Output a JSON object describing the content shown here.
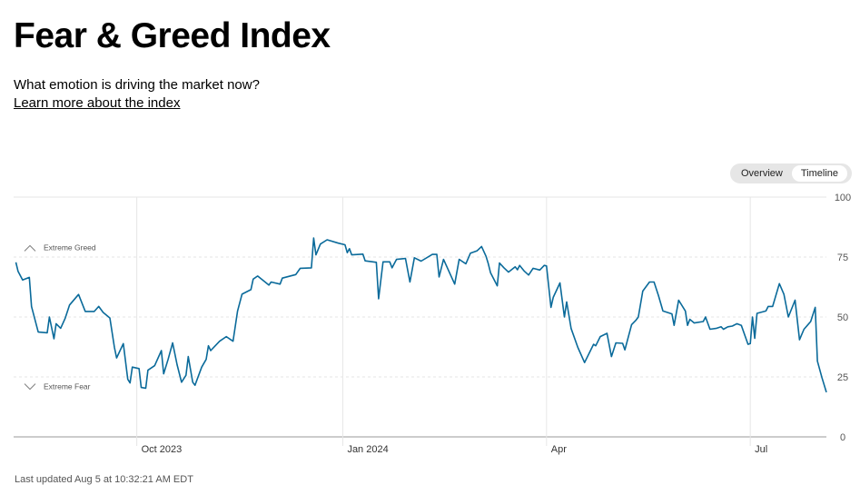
{
  "header": {
    "title": "Fear & Greed Index",
    "subtitle": "What emotion is driving the market now?",
    "link": "Learn more about the index"
  },
  "toggle": {
    "overview": "Overview",
    "timeline": "Timeline",
    "active": "timeline"
  },
  "footer": {
    "updated": "Last updated Aug 5 at 10:32:21 AM EDT"
  },
  "colors": {
    "line": "#0a6a9a",
    "grid": "#e6e6e6",
    "axis": "#cccccc",
    "tick_text": "#555555"
  },
  "chart_data": {
    "type": "line",
    "title": "Fear & Greed Index",
    "x_unit": "days since 2023-10-01",
    "xlim": [
      -55,
      308
    ],
    "ylim": [
      0,
      100
    ],
    "y_ticks": [
      0,
      25,
      50,
      75,
      100
    ],
    "x_ticks": [
      {
        "label": "Oct 2023",
        "x": 0
      },
      {
        "label": "Jan 2024",
        "x": 92
      },
      {
        "label": "Apr",
        "x": 183
      },
      {
        "label": "Jul",
        "x": 274
      }
    ],
    "annotations": [
      {
        "label": "Extreme Greed",
        "icon": "chevron-up",
        "y": 79
      },
      {
        "label": "Extreme Fear",
        "icon": "chevron-down",
        "y": 21
      }
    ],
    "grid": true,
    "series": [
      {
        "name": "Fear & Greed Index",
        "x": [
          -54,
          -53,
          -51,
          -48,
          -47,
          -44,
          -40,
          -39,
          -37,
          -36,
          -34,
          -32,
          -30,
          -26,
          -23,
          -19,
          -17,
          -15,
          -12,
          -10,
          -9,
          -6,
          -4,
          -3,
          -2,
          1,
          2,
          4,
          5,
          8,
          11,
          12,
          14,
          16,
          18,
          20,
          22,
          23,
          25,
          26,
          29,
          31,
          32,
          33,
          37,
          40,
          43,
          45,
          47,
          51,
          52,
          54,
          59,
          60,
          64,
          65,
          71,
          73,
          78,
          79,
          80,
          82,
          85,
          90,
          93,
          94,
          95,
          96,
          101,
          102,
          107,
          108,
          110,
          113,
          114,
          116,
          120,
          122,
          124,
          127,
          132,
          134,
          135,
          137,
          142,
          144,
          147,
          149,
          152,
          154,
          156,
          157,
          158,
          161,
          162,
          164,
          166,
          169,
          170,
          171,
          173,
          175,
          177,
          180,
          182,
          183,
          185,
          186,
          189,
          191,
          192,
          194,
          197,
          200,
          204,
          205,
          207,
          210,
          212,
          214,
          217,
          218,
          221,
          223,
          224,
          226,
          229,
          231,
          233,
          235,
          239,
          240,
          242,
          245,
          246,
          247,
          249,
          253,
          254,
          256,
          259,
          261,
          262,
          264,
          266,
          268,
          270,
          273,
          274,
          275,
          276,
          277,
          281,
          282,
          284,
          287,
          289,
          291,
          294,
          296,
          298,
          301,
          303,
          304,
          306,
          308
        ],
        "values": [
          72.8,
          69,
          65.4,
          66.5,
          54.4,
          43.7,
          43.4,
          50,
          40.9,
          47.2,
          45.3,
          49.4,
          55,
          59.4,
          52.3,
          52.3,
          54.4,
          51.9,
          49.6,
          37.3,
          32.9,
          38.9,
          24,
          22.5,
          29.1,
          28.5,
          20.6,
          20.3,
          27.8,
          29.7,
          36,
          26.3,
          32.3,
          39.2,
          30.1,
          22.8,
          25.7,
          33.5,
          22.8,
          21.5,
          29.1,
          32.3,
          38,
          36,
          39.9,
          41.8,
          39.9,
          52.5,
          59.5,
          61.4,
          65.8,
          67.1,
          63.3,
          64.6,
          63.7,
          66.2,
          67.7,
          70.3,
          70.5,
          82.9,
          75.9,
          80.4,
          82.2,
          80.8,
          80.1,
          76.8,
          78.5,
          75.9,
          76.2,
          73.4,
          72.8,
          57.6,
          73,
          73,
          70.5,
          74,
          74.4,
          64.6,
          74.7,
          73.3,
          76.1,
          76.1,
          66.7,
          74,
          63.7,
          74,
          72.2,
          76.6,
          77.6,
          79.4,
          75.3,
          72.2,
          68.4,
          63,
          72.5,
          70.5,
          68.7,
          70.9,
          69.7,
          71.5,
          69.2,
          67.5,
          70.3,
          69.6,
          71.5,
          71.3,
          54,
          58.2,
          64.2,
          50,
          56.3,
          45.2,
          37.3,
          31,
          38.6,
          38,
          41.8,
          43.2,
          33.5,
          39.2,
          39,
          36.3,
          46.8,
          48.7,
          50,
          60.8,
          64.6,
          64.6,
          58.9,
          52.5,
          51.3,
          46.5,
          57,
          52.5,
          46.5,
          49,
          47.5,
          48.1,
          50,
          44.9,
          45.3,
          45.9,
          44.9,
          45.9,
          46.2,
          47.2,
          46.5,
          38.6,
          38.9,
          50,
          41.1,
          51.5,
          52.5,
          54.4,
          54.4,
          63.9,
          59.5,
          50,
          57,
          40.5,
          44.9,
          48.1,
          54,
          31.6,
          24.7,
          18.6
        ]
      }
    ]
  }
}
